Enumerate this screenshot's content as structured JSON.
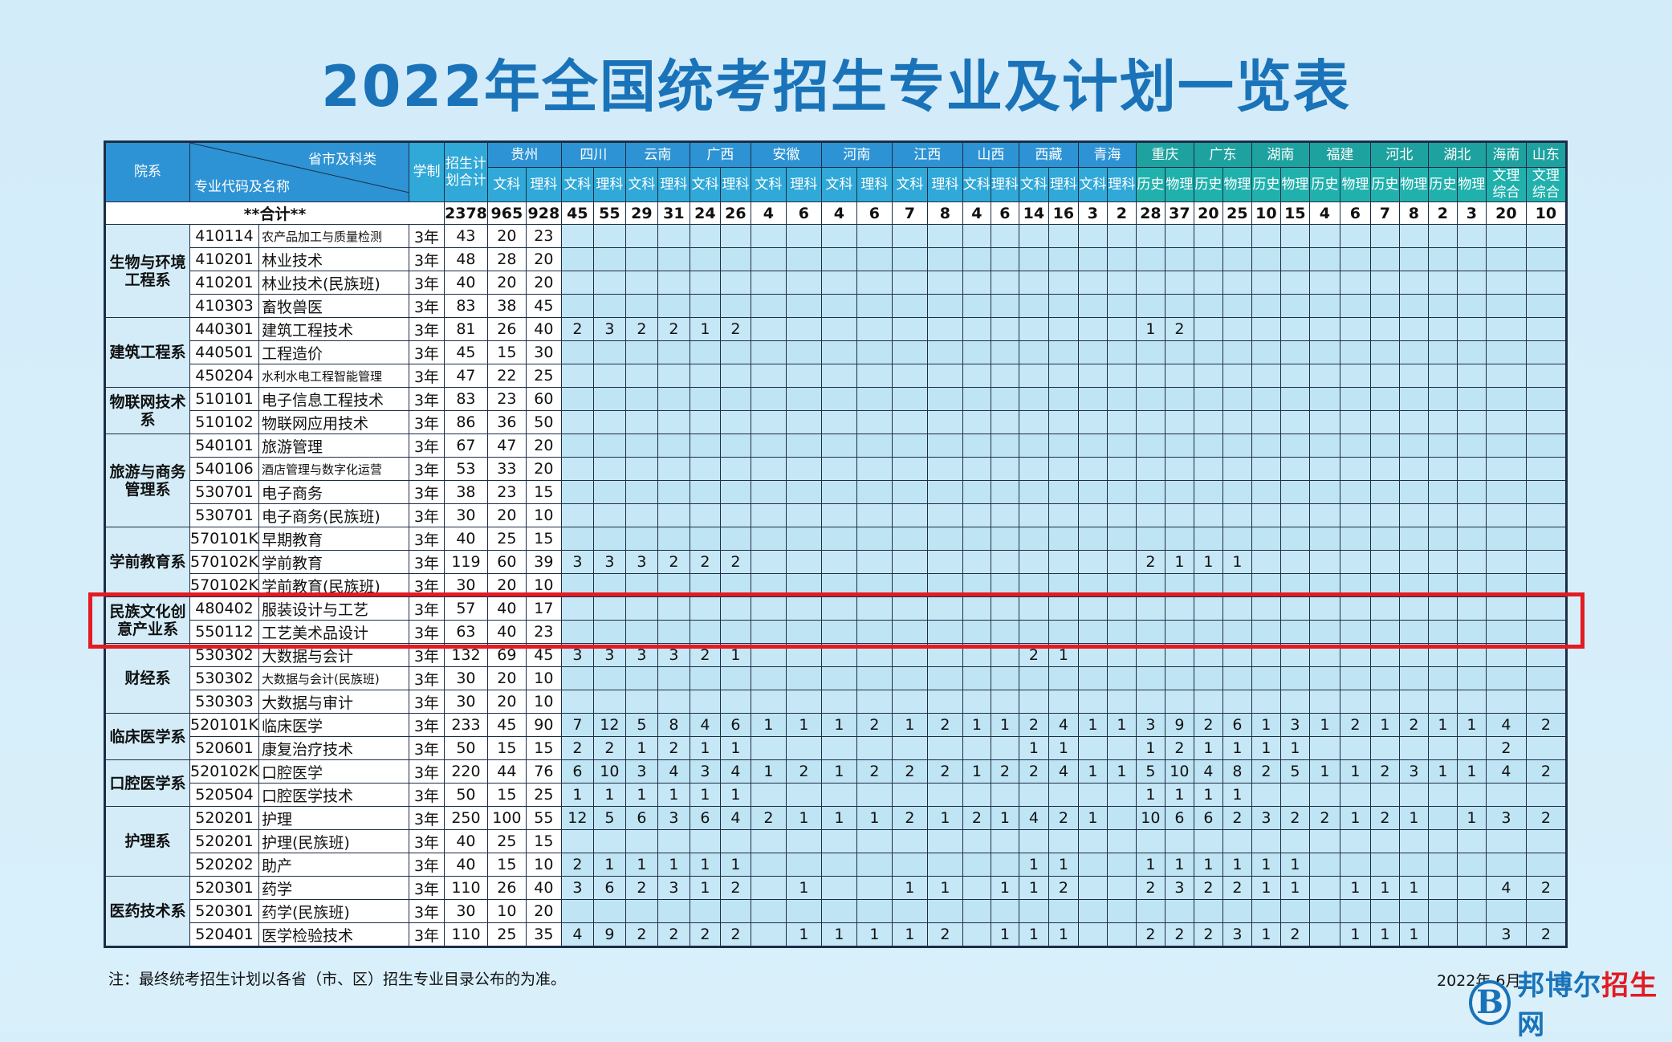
{
  "title": "2022年全国统考招生专业及计划一览表",
  "header": {
    "dept": "院系",
    "corner_top": "省市及科类",
    "corner_bottom": "专业代码及名称",
    "duration": "学制",
    "total": "招生计划合计"
  },
  "provinces": [
    {
      "name": "贵州",
      "subs": [
        "文科",
        "理科"
      ],
      "teal": false
    },
    {
      "name": "四川",
      "subs": [
        "文科",
        "理科"
      ],
      "teal": false
    },
    {
      "name": "云南",
      "subs": [
        "文科",
        "理科"
      ],
      "teal": false
    },
    {
      "name": "广西",
      "subs": [
        "文科",
        "理科"
      ],
      "teal": false
    },
    {
      "name": "安徽",
      "subs": [
        "文科",
        "理科"
      ],
      "teal": false
    },
    {
      "name": "河南",
      "subs": [
        "文科",
        "理科"
      ],
      "teal": false
    },
    {
      "name": "江西",
      "subs": [
        "文科",
        "理科"
      ],
      "teal": false
    },
    {
      "name": "山西",
      "subs": [
        "文科",
        "理科"
      ],
      "teal": false
    },
    {
      "name": "西藏",
      "subs": [
        "文科",
        "理科"
      ],
      "teal": false
    },
    {
      "name": "青海",
      "subs": [
        "文科",
        "理科"
      ],
      "teal": false
    },
    {
      "name": "重庆",
      "subs": [
        "历史",
        "物理"
      ],
      "teal": true
    },
    {
      "name": "广东",
      "subs": [
        "历史",
        "物理"
      ],
      "teal": true
    },
    {
      "name": "湖南",
      "subs": [
        "历史",
        "物理"
      ],
      "teal": true
    },
    {
      "name": "福建",
      "subs": [
        "历史",
        "物理"
      ],
      "teal": true
    },
    {
      "name": "河北",
      "subs": [
        "历史",
        "物理"
      ],
      "teal": true
    },
    {
      "name": "湖北",
      "subs": [
        "历史",
        "物理"
      ],
      "teal": true
    },
    {
      "name": "海南",
      "subs": [
        "文理综合"
      ],
      "teal": true
    },
    {
      "name": "山东",
      "subs": [
        "文理综合"
      ],
      "teal": true
    }
  ],
  "totals": {
    "label": "**合计**",
    "total": "2378",
    "values": [
      "965",
      "928",
      "45",
      "55",
      "29",
      "31",
      "24",
      "26",
      "4",
      "6",
      "4",
      "6",
      "7",
      "8",
      "4",
      "6",
      "14",
      "16",
      "3",
      "2",
      "28",
      "37",
      "20",
      "25",
      "10",
      "15",
      "4",
      "6",
      "7",
      "8",
      "2",
      "3",
      "20",
      "10"
    ]
  },
  "departments": [
    {
      "name": "生物与环境工程系",
      "rows": [
        {
          "code": "410114",
          "name": "农产品加工与质量检测",
          "small": true,
          "dur": "3年",
          "total": "43",
          "v": [
            "20",
            "23"
          ]
        },
        {
          "code": "410201",
          "name": "林业技术",
          "dur": "3年",
          "total": "48",
          "v": [
            "28",
            "20"
          ]
        },
        {
          "code": "410201",
          "name": "林业技术(民族班)",
          "dur": "3年",
          "total": "40",
          "v": [
            "20",
            "20"
          ]
        },
        {
          "code": "410303",
          "name": "畜牧兽医",
          "dur": "3年",
          "total": "83",
          "v": [
            "38",
            "45"
          ]
        }
      ]
    },
    {
      "name": "建筑工程系",
      "rows": [
        {
          "code": "440301",
          "name": "建筑工程技术",
          "dur": "3年",
          "total": "81",
          "v": [
            "26",
            "40",
            "2",
            "3",
            "2",
            "2",
            "1",
            "2",
            "",
            "",
            "",
            "",
            "",
            "",
            "",
            "",
            "",
            "",
            "",
            "",
            "1",
            "2"
          ]
        },
        {
          "code": "440501",
          "name": "工程造价",
          "dur": "3年",
          "total": "45",
          "v": [
            "15",
            "30"
          ]
        },
        {
          "code": "450204",
          "name": "水利水电工程智能管理",
          "small": true,
          "dur": "3年",
          "total": "47",
          "v": [
            "22",
            "25"
          ]
        }
      ]
    },
    {
      "name": "物联网技术系",
      "rows": [
        {
          "code": "510101",
          "name": "电子信息工程技术",
          "dur": "3年",
          "total": "83",
          "v": [
            "23",
            "60"
          ]
        },
        {
          "code": "510102",
          "name": "物联网应用技术",
          "dur": "3年",
          "total": "86",
          "v": [
            "36",
            "50"
          ]
        }
      ]
    },
    {
      "name": "旅游与商务管理系",
      "rows": [
        {
          "code": "540101",
          "name": "旅游管理",
          "dur": "3年",
          "total": "67",
          "v": [
            "47",
            "20"
          ]
        },
        {
          "code": "540106",
          "name": "酒店管理与数字化运营",
          "small": true,
          "dur": "3年",
          "total": "53",
          "v": [
            "33",
            "20"
          ]
        },
        {
          "code": "530701",
          "name": "电子商务",
          "dur": "3年",
          "total": "38",
          "v": [
            "23",
            "15"
          ]
        },
        {
          "code": "530701",
          "name": "电子商务(民族班)",
          "dur": "3年",
          "total": "30",
          "v": [
            "20",
            "10"
          ]
        }
      ]
    },
    {
      "name": "学前教育系",
      "rows": [
        {
          "code": "570101K",
          "name": "早期教育",
          "dur": "3年",
          "total": "40",
          "v": [
            "25",
            "15"
          ]
        },
        {
          "code": "570102K",
          "name": "学前教育",
          "dur": "3年",
          "total": "119",
          "v": [
            "60",
            "39",
            "3",
            "3",
            "3",
            "2",
            "2",
            "2",
            "",
            "",
            "",
            "",
            "",
            "",
            "",
            "",
            "",
            "",
            "",
            "",
            "2",
            "1",
            "1",
            "1"
          ]
        },
        {
          "code": "570102K",
          "name": "学前教育(民族班)",
          "dur": "3年",
          "total": "30",
          "v": [
            "20",
            "10"
          ]
        }
      ]
    },
    {
      "name": "民族文化创意产业系",
      "rows": [
        {
          "code": "480402",
          "name": "服装设计与工艺",
          "dur": "3年",
          "total": "57",
          "v": [
            "40",
            "17"
          ]
        },
        {
          "code": "550112",
          "name": "工艺美术品设计",
          "dur": "3年",
          "total": "63",
          "v": [
            "40",
            "23"
          ]
        }
      ]
    },
    {
      "name": "财经系",
      "rows": [
        {
          "code": "530302",
          "name": "大数据与会计",
          "dur": "3年",
          "total": "132",
          "v": [
            "69",
            "45",
            "3",
            "3",
            "3",
            "3",
            "2",
            "1",
            "",
            "",
            "",
            "",
            "",
            "",
            "",
            "",
            "2",
            "1"
          ]
        },
        {
          "code": "530302",
          "name": "大数据与会计(民族班)",
          "small": true,
          "dur": "3年",
          "total": "30",
          "v": [
            "20",
            "10"
          ]
        },
        {
          "code": "530303",
          "name": "大数据与审计",
          "dur": "3年",
          "total": "30",
          "v": [
            "20",
            "10"
          ]
        }
      ]
    },
    {
      "name": "临床医学系",
      "rows": [
        {
          "code": "520101K",
          "name": "临床医学",
          "dur": "3年",
          "total": "233",
          "v": [
            "45",
            "90",
            "7",
            "12",
            "5",
            "8",
            "4",
            "6",
            "1",
            "1",
            "1",
            "2",
            "1",
            "2",
            "1",
            "1",
            "2",
            "4",
            "1",
            "1",
            "3",
            "9",
            "2",
            "6",
            "1",
            "3",
            "1",
            "2",
            "1",
            "2",
            "1",
            "1",
            "4",
            "2"
          ]
        },
        {
          "code": "520601",
          "name": "康复治疗技术",
          "dur": "3年",
          "total": "50",
          "v": [
            "15",
            "15",
            "2",
            "2",
            "1",
            "2",
            "1",
            "1",
            "",
            "",
            "",
            "",
            "",
            "",
            "",
            "",
            "1",
            "1",
            "",
            "",
            "1",
            "2",
            "1",
            "1",
            "1",
            "1",
            "",
            "",
            "",
            "",
            "",
            "",
            "2",
            ""
          ]
        }
      ]
    },
    {
      "name": "口腔医学系",
      "rows": [
        {
          "code": "520102K",
          "name": "口腔医学",
          "dur": "3年",
          "total": "220",
          "v": [
            "44",
            "76",
            "6",
            "10",
            "3",
            "4",
            "3",
            "4",
            "1",
            "2",
            "1",
            "2",
            "2",
            "2",
            "1",
            "2",
            "2",
            "4",
            "1",
            "1",
            "5",
            "10",
            "4",
            "8",
            "2",
            "5",
            "1",
            "1",
            "2",
            "3",
            "1",
            "1",
            "4",
            "2"
          ]
        },
        {
          "code": "520504",
          "name": "口腔医学技术",
          "dur": "3年",
          "total": "50",
          "v": [
            "15",
            "25",
            "1",
            "1",
            "1",
            "1",
            "1",
            "1",
            "",
            "",
            "",
            "",
            "",
            "",
            "",
            "",
            "",
            "",
            "",
            "",
            "1",
            "1",
            "1",
            "1"
          ]
        }
      ]
    },
    {
      "name": "护理系",
      "rows": [
        {
          "code": "520201",
          "name": "护理",
          "dur": "3年",
          "total": "250",
          "v": [
            "100",
            "55",
            "12",
            "5",
            "6",
            "3",
            "6",
            "4",
            "2",
            "1",
            "1",
            "1",
            "2",
            "1",
            "2",
            "1",
            "4",
            "2",
            "1",
            "",
            "10",
            "6",
            "6",
            "2",
            "3",
            "2",
            "2",
            "1",
            "2",
            "1",
            "",
            "1",
            "3",
            "2"
          ]
        },
        {
          "code": "520201",
          "name": "护理(民族班)",
          "dur": "3年",
          "total": "40",
          "v": [
            "25",
            "15"
          ]
        },
        {
          "code": "520202",
          "name": "助产",
          "dur": "3年",
          "total": "40",
          "v": [
            "15",
            "10",
            "2",
            "1",
            "1",
            "1",
            "1",
            "1",
            "",
            "",
            "",
            "",
            "",
            "",
            "",
            "",
            "1",
            "1",
            "",
            "",
            "1",
            "1",
            "1",
            "1",
            "1",
            "1"
          ]
        }
      ]
    },
    {
      "name": "医药技术系",
      "rows": [
        {
          "code": "520301",
          "name": "药学",
          "dur": "3年",
          "total": "110",
          "v": [
            "26",
            "40",
            "3",
            "6",
            "2",
            "3",
            "1",
            "2",
            "",
            "1",
            "",
            "",
            "1",
            "1",
            "",
            "1",
            "1",
            "2",
            "",
            "",
            "2",
            "3",
            "2",
            "2",
            "1",
            "1",
            "",
            "1",
            "1",
            "1",
            "",
            "",
            "4",
            "2"
          ]
        },
        {
          "code": "520301",
          "name": "药学(民族班)",
          "dur": "3年",
          "total": "30",
          "v": [
            "10",
            "20"
          ]
        },
        {
          "code": "520401",
          "name": "医学检验技术",
          "dur": "3年",
          "total": "110",
          "v": [
            "25",
            "35",
            "4",
            "9",
            "2",
            "2",
            "2",
            "2",
            "",
            "1",
            "1",
            "1",
            "1",
            "2",
            "",
            "1",
            "1",
            "1",
            "",
            "",
            "2",
            "2",
            "2",
            "3",
            "1",
            "2",
            "",
            "1",
            "1",
            "1",
            "",
            "",
            "3",
            "2"
          ]
        }
      ]
    }
  ],
  "note": "注：最终统考招生计划以各省（市、区）招生专业目录公布的为准。",
  "date": "2022年 6月",
  "watermark": {
    "logo": "B",
    "text_a": "邦博尔",
    "text_b": "招生",
    "text_c": "网"
  },
  "colors": {
    "title": "#1a73b8",
    "header": "#2d93d4",
    "header_teal": "#1ea29f",
    "cell": "#bfe4f4",
    "highlight": "#e31b23"
  }
}
